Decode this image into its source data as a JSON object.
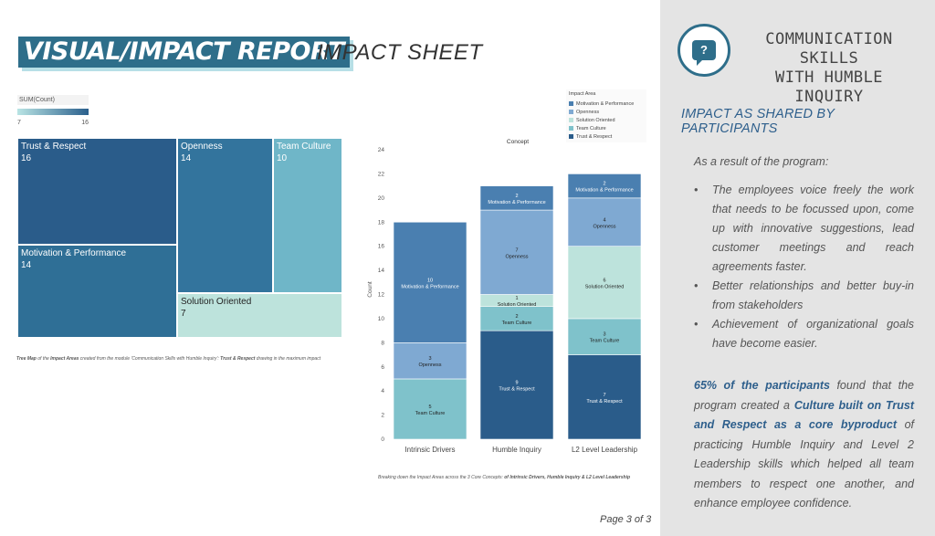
{
  "header": {
    "title": "VISUAL/IMPACT REPORT",
    "subtitle": "IMPACT SHEET"
  },
  "treemap": {
    "legend_title": "SUM(Count)",
    "legend_min": "7",
    "legend_max": "16",
    "caption_parts": {
      "a": "Tree Map",
      "b": " of the ",
      "c": "Impact Areas",
      "d": " created from the module 'Communication Skills with Humble Inquiry': ",
      "e": "Trust & Respect",
      "f": " drawing in the maximum impact"
    }
  },
  "chart_caption": {
    "a": "Breaking down the Impact Areas across the 3 Core Concepts: ",
    "b": "of Intrinsic Drivers, Humble Inquiry & L2 Level Leadership"
  },
  "page_number": "Page 3 of 3",
  "chart_data": [
    {
      "type": "treemap",
      "color_scale": [
        "#b9e4e4",
        "#2a5f8c"
      ],
      "cells": [
        {
          "label": "Trust & Respect",
          "value": 16
        },
        {
          "label": "Motivation & Performance",
          "value": 14
        },
        {
          "label": "Openness",
          "value": 14
        },
        {
          "label": "Team Culture",
          "value": 10
        },
        {
          "label": "Solution Oriented",
          "value": 7
        }
      ]
    },
    {
      "type": "bar",
      "stacked": true,
      "title": "Concept",
      "ylabel": "Count",
      "ylim": [
        0,
        24
      ],
      "yticks": [
        0,
        2,
        4,
        6,
        8,
        10,
        12,
        14,
        16,
        18,
        20,
        22,
        24
      ],
      "categories": [
        "Intrinsic Drivers",
        "Humble Inquiry",
        "L2 Level Leadership"
      ],
      "legend_title": "Impact Area",
      "legend_order": [
        "Motivation & Performance",
        "Openness",
        "Solution Oriented",
        "Team Culture",
        "Trust & Respect"
      ],
      "series": [
        {
          "name": "Trust & Respect",
          "color": "#2a5c8a",
          "values": [
            0,
            9,
            7
          ]
        },
        {
          "name": "Team Culture",
          "color": "#7fc2cb",
          "values": [
            5,
            2,
            3
          ]
        },
        {
          "name": "Solution Oriented",
          "color": "#bde3dc",
          "values": [
            0,
            1,
            6
          ]
        },
        {
          "name": "Openness",
          "color": "#7fa9d2",
          "values": [
            3,
            7,
            4
          ]
        },
        {
          "name": "Motivation & Performance",
          "color": "#4a7fb0",
          "values": [
            10,
            2,
            2
          ]
        }
      ]
    }
  ],
  "colors": {
    "accent": "#2e6e8a",
    "panel_bg": "#e4e4e4",
    "heading_blue": "#2e5f8c"
  },
  "right_panel": {
    "icon": "question-bubble-icon",
    "icon_glyph": "?",
    "heading_line1": "COMMUNICATION SKILLS",
    "heading_line2": "WITH HUMBLE INQUIRY",
    "section_title": "IMPACT AS SHARED BY PARTICIPANTS",
    "intro": "As a result of the program:",
    "bullet_glyph": "•",
    "bullets": [
      "The employees voice freely the work that needs to be focussed upon, come up with innovative suggestions, lead customer meetings and reach agreements faster.",
      "Better relationships and better buy-in from stakeholders",
      "Achievement of organizational goals have become easier."
    ],
    "summary": {
      "p1": "65% of the participants",
      "p2": " found that the program created a ",
      "p3": "Culture  built on Trust and Respect as a core byproduct",
      "p4": " of practicing Humble Inquiry  and Level 2 Leadership skills which helped all team members to respect one another, and enhance employee confidence."
    }
  }
}
